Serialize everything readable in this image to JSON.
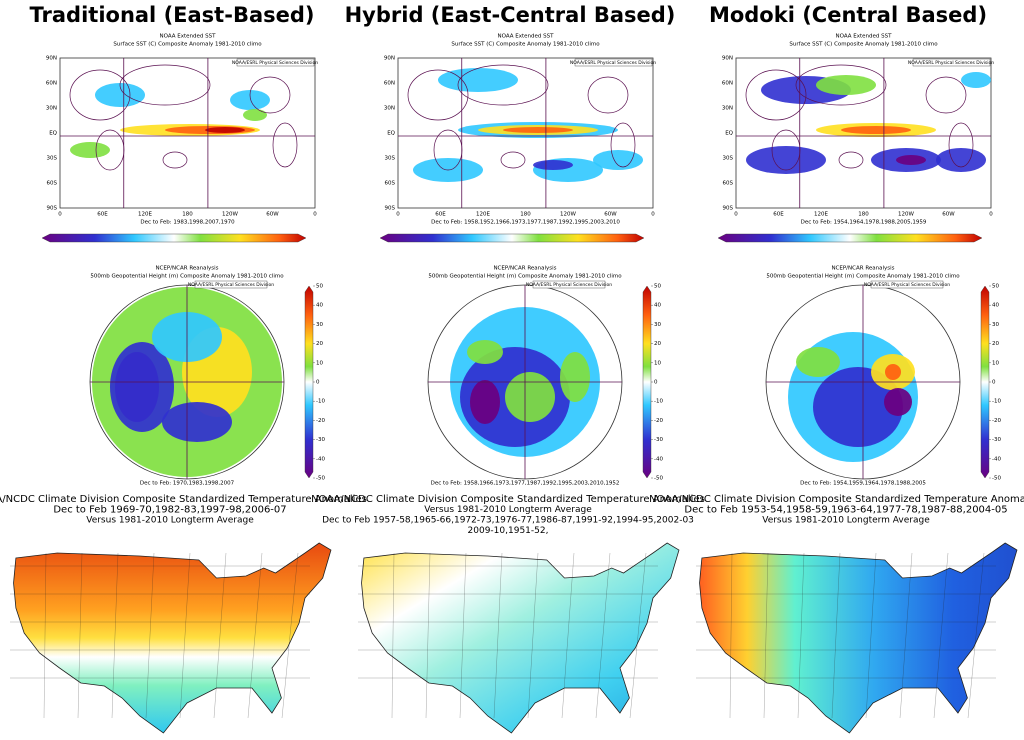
{
  "columns": [
    {
      "title": "Traditional (East-Based)",
      "sst": {
        "source": "NOAA Extended SST",
        "subtitle": "Surface SST (C) Composite Anomaly 1981-2010 climo",
        "credit": "NOAA/ESRL Physical Sciences Division",
        "caption": "Dec to Feb: 1983,1998,2007,1970"
      },
      "height": {
        "source": "NCEP/NCAR Reanalysis",
        "subtitle": "500mb Geopotential Height (m) Composite Anomaly 1981-2010 climo",
        "credit": "NOAA/ESRL Physical Sciences Division",
        "caption": "Dec to Feb: 1970,1983,1998,2007"
      },
      "temp": {
        "lines": [
          "NOAA/NCDC Climate Division Composite Standardized Temperature Anomalies",
          "Dec to Feb   1969-70,1982-83,1997-98,2006-07",
          "Versus 1981-2010 Longterm Average"
        ]
      }
    },
    {
      "title": "Hybrid (East-Central Based)",
      "sst": {
        "source": "NOAA Extended SST",
        "subtitle": "Surface SST (C) Composite Anomaly 1981-2010 climo",
        "credit": "NOAA/ESRL Physical Sciences Division",
        "caption": "Dec to Feb: 1958,1952,1966,1973,1977,1987,1992,1995,2003,2010"
      },
      "height": {
        "source": "NCEP/NCAR Reanalysis",
        "subtitle": "500mb Geopotential Height (m) Composite Anomaly 1981-2010 climo",
        "credit": "NOAA/ESRL Physical Sciences Division",
        "caption": "Dec to Feb: 1958,1966,1973,1977,1987,1992,1995,2003,2010,1952"
      },
      "temp": {
        "lines": [
          "NOAA/NCDC Climate Division Composite Standardized Temperature Anomalies",
          "Versus 1981-2010 Longterm Average",
          "Dec to Feb   1957-58,1965-66,1972-73,1976-77,1986-87,1991-92,1994-95,2002-03",
          "2009-10,1951-52,"
        ]
      }
    },
    {
      "title": "Modoki (Central Based)",
      "sst": {
        "source": "NOAA Extended SST",
        "subtitle": "Surface SST (C) Composite Anomaly 1981-2010 climo",
        "credit": "NOAA/ESRL Physical Sciences Division",
        "caption": "Dec to Feb: 1954,1964,1978,1988,2005,1959"
      },
      "height": {
        "source": "NCEP/NCAR Reanalysis",
        "subtitle": "500mb Geopotential Height (m) Composite Anomaly 1981-2010 climo",
        "credit": "NOAA/ESRL Physical Sciences Division",
        "caption": "Dec to Feb: 1954,1959,1964,1978,1988,2005"
      },
      "temp": {
        "lines": [
          "NOAA/NCDC Climate Division Composite Standardized Temperature Anomalies",
          "Dec to Feb   1953-54,1958-59,1963-64,1977-78,1987-88,2004-05",
          "Versus 1981-2010 Longterm Average"
        ]
      }
    }
  ],
  "lat_labels": [
    "90N",
    "60N",
    "30N",
    "EQ",
    "30S",
    "60S",
    "90S"
  ],
  "lon_labels": [
    "0",
    "60E",
    "120E",
    "180",
    "120W",
    "60W",
    "0"
  ],
  "colorbar_ticks": [
    50,
    40,
    30,
    20,
    10,
    0,
    -10,
    -20,
    -30,
    -40,
    -50
  ]
}
